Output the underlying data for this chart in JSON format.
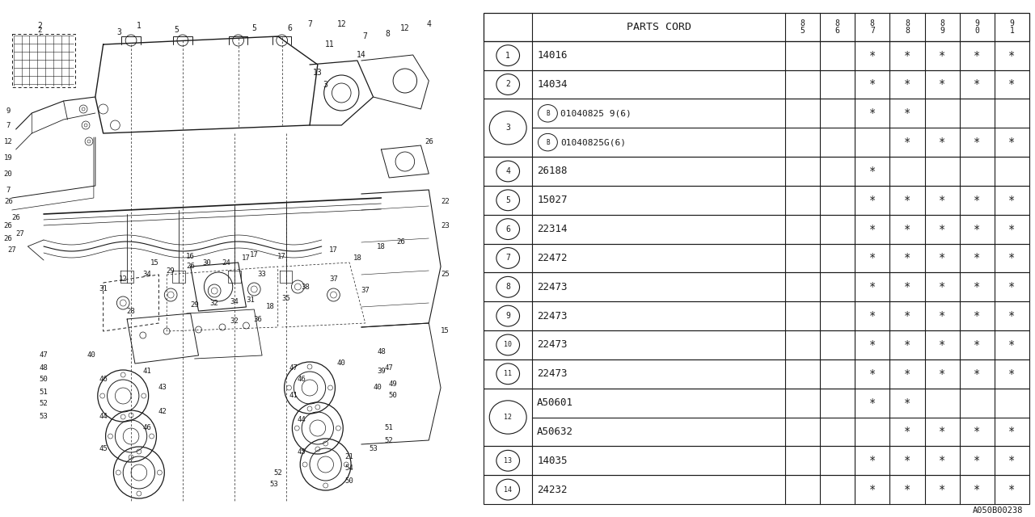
{
  "footer": "A050B00238",
  "bg_color": "#ffffff",
  "line_color": "#1a1a1a",
  "table": {
    "header_label": "PARTS CORD",
    "year_cols": [
      "8\n5",
      "8\n6",
      "8\n7",
      "8\n8",
      "8\n9",
      "9\n0",
      "9\n1"
    ],
    "logical_rows": [
      {
        "num": "1",
        "parts": [
          {
            "label": "14016",
            "sub": null,
            "marks": [
              0,
              0,
              1,
              1,
              1,
              1,
              1
            ]
          }
        ]
      },
      {
        "num": "2",
        "parts": [
          {
            "label": "14034",
            "sub": null,
            "marks": [
              0,
              0,
              1,
              1,
              1,
              1,
              1
            ]
          }
        ]
      },
      {
        "num": "3",
        "parts": [
          {
            "label": "01040825 9(6)",
            "sub": "B",
            "marks": [
              0,
              0,
              1,
              1,
              0,
              0,
              0
            ]
          },
          {
            "label": "01040825G(6)",
            "sub": "B",
            "marks": [
              0,
              0,
              0,
              1,
              1,
              1,
              1
            ]
          }
        ]
      },
      {
        "num": "4",
        "parts": [
          {
            "label": "26188",
            "sub": null,
            "marks": [
              0,
              0,
              1,
              0,
              0,
              0,
              0
            ]
          }
        ]
      },
      {
        "num": "5",
        "parts": [
          {
            "label": "15027",
            "sub": null,
            "marks": [
              0,
              0,
              1,
              1,
              1,
              1,
              1
            ]
          }
        ]
      },
      {
        "num": "6",
        "parts": [
          {
            "label": "22314",
            "sub": null,
            "marks": [
              0,
              0,
              1,
              1,
              1,
              1,
              1
            ]
          }
        ]
      },
      {
        "num": "7",
        "parts": [
          {
            "label": "22472",
            "sub": null,
            "marks": [
              0,
              0,
              1,
              1,
              1,
              1,
              1
            ]
          }
        ]
      },
      {
        "num": "8",
        "parts": [
          {
            "label": "22473",
            "sub": null,
            "marks": [
              0,
              0,
              1,
              1,
              1,
              1,
              1
            ]
          }
        ]
      },
      {
        "num": "9",
        "parts": [
          {
            "label": "22473",
            "sub": null,
            "marks": [
              0,
              0,
              1,
              1,
              1,
              1,
              1
            ]
          }
        ]
      },
      {
        "num": "10",
        "parts": [
          {
            "label": "22473",
            "sub": null,
            "marks": [
              0,
              0,
              1,
              1,
              1,
              1,
              1
            ]
          }
        ]
      },
      {
        "num": "11",
        "parts": [
          {
            "label": "22473",
            "sub": null,
            "marks": [
              0,
              0,
              1,
              1,
              1,
              1,
              1
            ]
          }
        ]
      },
      {
        "num": "12",
        "parts": [
          {
            "label": "A50601",
            "sub": null,
            "marks": [
              0,
              0,
              1,
              1,
              0,
              0,
              0
            ]
          },
          {
            "label": "A50632",
            "sub": null,
            "marks": [
              0,
              0,
              0,
              1,
              1,
              1,
              1
            ]
          }
        ]
      },
      {
        "num": "13",
        "parts": [
          {
            "label": "14035",
            "sub": null,
            "marks": [
              0,
              0,
              1,
              1,
              1,
              1,
              1
            ]
          }
        ]
      },
      {
        "num": "14",
        "parts": [
          {
            "label": "24232",
            "sub": null,
            "marks": [
              0,
              0,
              1,
              1,
              1,
              1,
              1
            ]
          }
        ]
      }
    ]
  }
}
